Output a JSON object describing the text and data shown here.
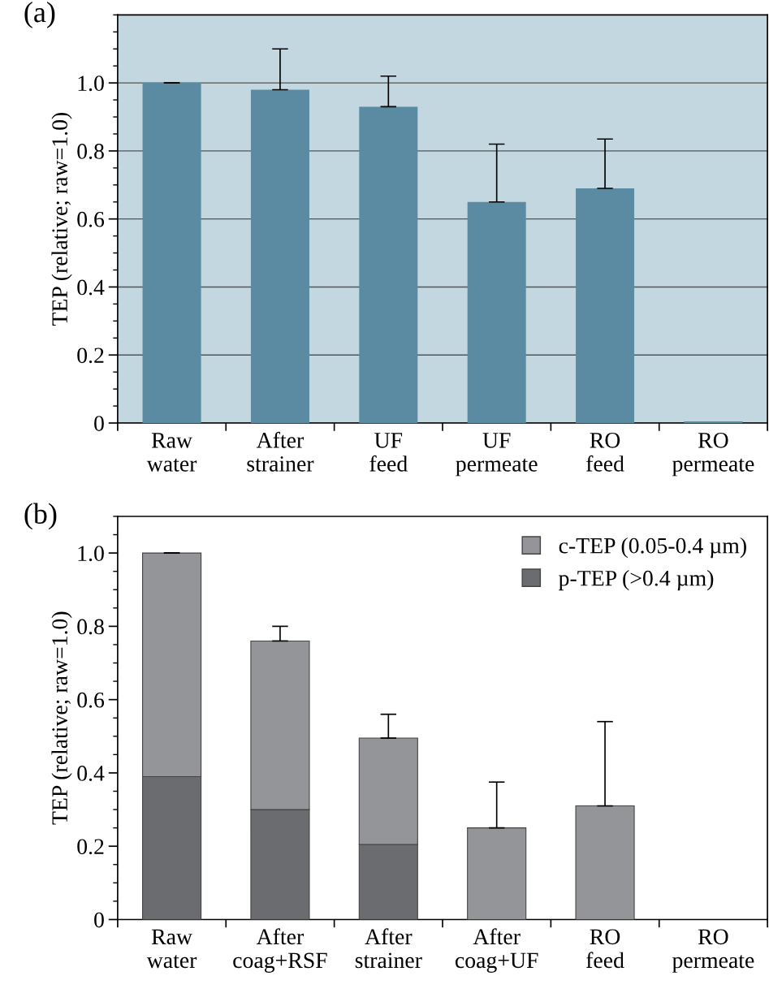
{
  "chart_data": [
    {
      "type": "bar",
      "title": "(a)",
      "ylabel": "TEP (relative; raw=1.0)",
      "categories": [
        "Raw\nwater",
        "After\nstrainer",
        "UF\nfeed",
        "UF\npermeate",
        "RO\nfeed",
        "RO\npermeate"
      ],
      "series": [
        {
          "color": "#5a8ba3",
          "values": [
            1.0,
            0.98,
            0.93,
            0.65,
            0.69,
            0.005
          ],
          "errors": [
            [
              1.0,
              1.0
            ],
            [
              0.98,
              1.1
            ],
            [
              0.93,
              1.02
            ],
            [
              0.65,
              0.82
            ],
            [
              0.69,
              0.835
            ],
            null
          ]
        }
      ],
      "ylim": [
        0,
        1.2
      ],
      "yticks": [
        {
          "value": 0,
          "label": "0"
        },
        {
          "value": 0.2,
          "label": "0.2"
        },
        {
          "value": 0.4,
          "label": "0.4"
        },
        {
          "value": 0.6,
          "label": "0.6"
        },
        {
          "value": 0.8,
          "label": "0.8"
        },
        {
          "value": 1.0,
          "label": "1.0"
        }
      ],
      "grid": "y"
    },
    {
      "type": "bar",
      "title": "(b)",
      "ylabel": "TEP (relative; raw=1.0)",
      "stacked": true,
      "legend": "top right",
      "categories": [
        "Raw\nwater",
        "After\ncoag+RSF",
        "After\nstrainer",
        "After\ncoag+UF",
        "RO\nfeed",
        "RO\npermeate"
      ],
      "series": [
        {
          "name": "p-TEP (>0.4 µm)",
          "color": "#6b6c6f",
          "values": [
            0.39,
            0.3,
            0.205,
            0,
            0,
            0
          ]
        },
        {
          "name": "c-TEP (0.05-0.4 µm)",
          "color": "#949599",
          "values": [
            0.61,
            0.46,
            0.29,
            0.25,
            0.31,
            0
          ],
          "errors": [
            [
              1.0,
              1.0
            ],
            [
              0.76,
              0.8
            ],
            [
              0.495,
              0.56
            ],
            [
              0.25,
              0.375
            ],
            [
              0.31,
              0.54
            ],
            null
          ]
        }
      ],
      "ylim": [
        0,
        1.1
      ],
      "yticks": [
        {
          "value": 0,
          "label": "0"
        },
        {
          "value": 0.2,
          "label": "0.2"
        },
        {
          "value": 0.4,
          "label": "0.4"
        },
        {
          "value": 0.6,
          "label": "0.6"
        },
        {
          "value": 0.8,
          "label": "0.8"
        },
        {
          "value": 1.0,
          "label": "1.0"
        }
      ],
      "grid": false
    }
  ]
}
